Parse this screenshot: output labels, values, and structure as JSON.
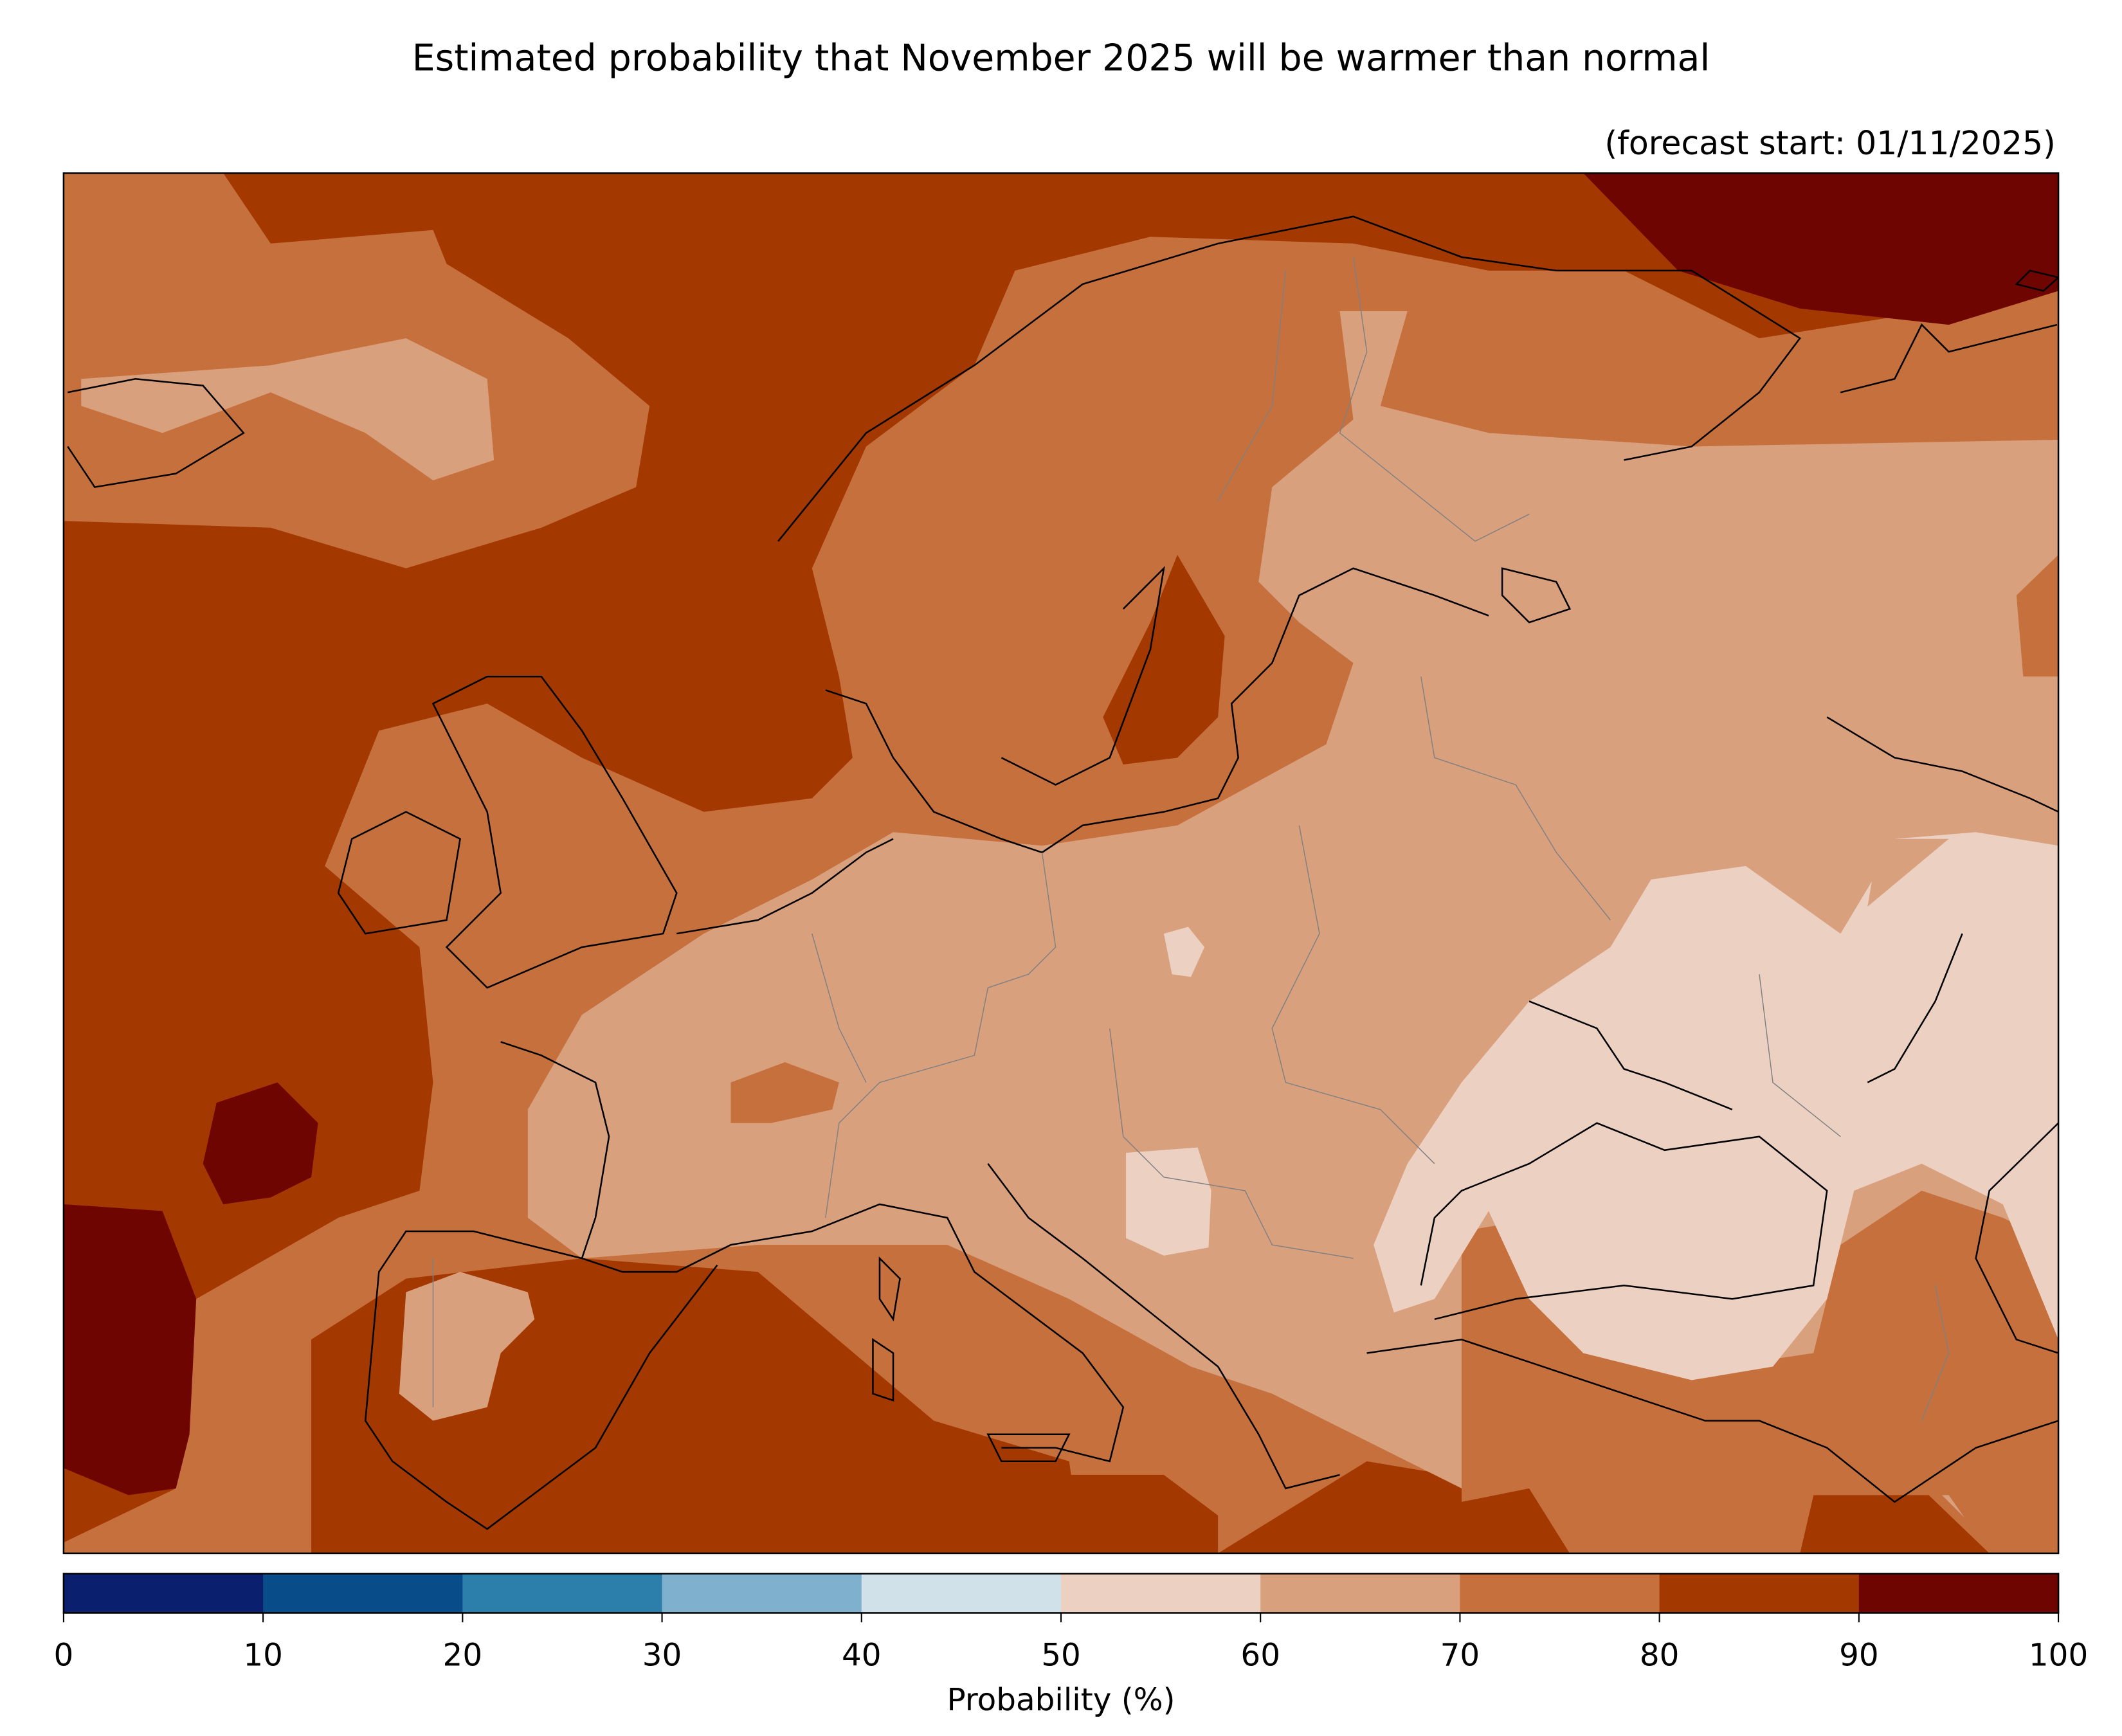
{
  "title": "Estimated probability that November 2025 will be warmer than normal",
  "subtitle": "(forecast start: 01/11/2025)",
  "colorbar": {
    "label": "Probability (%)",
    "ticks": [
      "0",
      "10",
      "20",
      "30",
      "40",
      "50",
      "60",
      "70",
      "80",
      "90",
      "100"
    ],
    "bins": [
      {
        "range": [
          0,
          10
        ],
        "color": "#0a1f6e"
      },
      {
        "range": [
          10,
          20
        ],
        "color": "#084d8a"
      },
      {
        "range": [
          20,
          30
        ],
        "color": "#2c7fab"
      },
      {
        "range": [
          30,
          40
        ],
        "color": "#7fb1cf"
      },
      {
        "range": [
          40,
          50
        ],
        "color": "#d0e1ea"
      },
      {
        "range": [
          50,
          60
        ],
        "color": "#ecd0c2"
      },
      {
        "range": [
          60,
          70
        ],
        "color": "#d9a07e"
      },
      {
        "range": [
          70,
          80
        ],
        "color": "#c6703d"
      },
      {
        "range": [
          80,
          90
        ],
        "color": "#a33800"
      },
      {
        "range": [
          90,
          100
        ],
        "color": "#6e0500"
      }
    ]
  },
  "map": {
    "region": "Europe",
    "variable": "probability of above-normal temperature",
    "units": "%"
  }
}
